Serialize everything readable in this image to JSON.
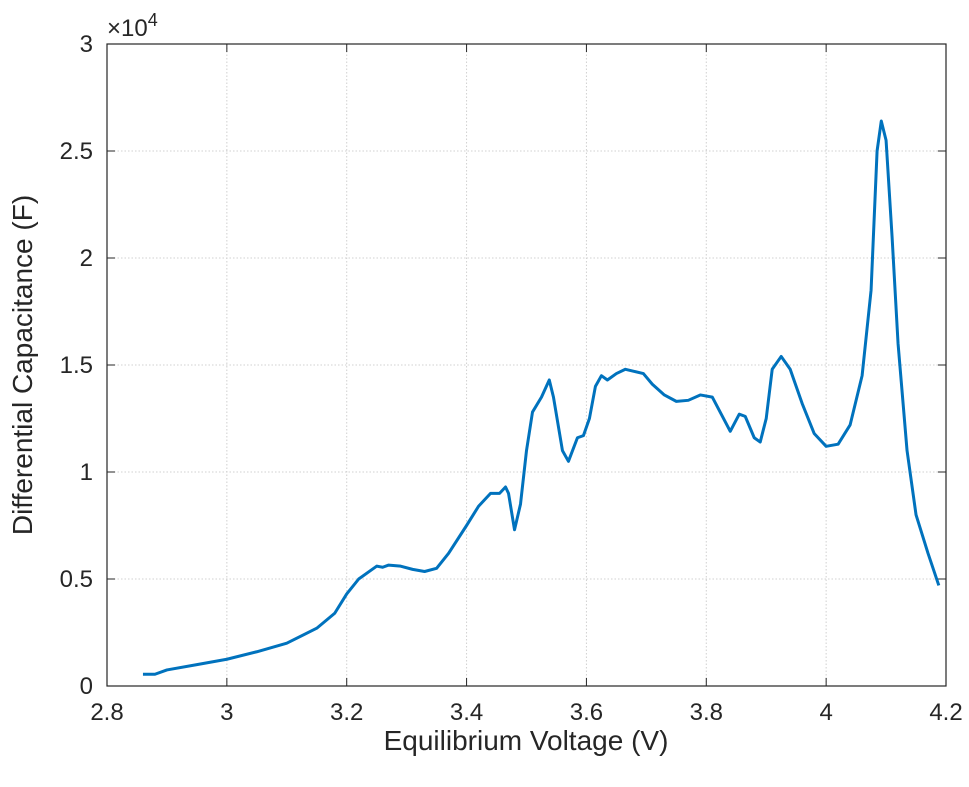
{
  "chart_data": {
    "type": "line",
    "x_label": "Equilibrium Voltage (V)",
    "y_label": "Differential Capacitance (F)",
    "y_multiplier": {
      "base": "×10",
      "exponent": "4"
    },
    "xlim": [
      2.8,
      4.2
    ],
    "ylim": [
      0,
      3
    ],
    "xticks": [
      2.8,
      3,
      3.2,
      3.4,
      3.6,
      3.8,
      4,
      4.2
    ],
    "yticks": [
      0,
      0.5,
      1,
      1.5,
      2,
      2.5,
      3
    ],
    "grid": true,
    "series": [
      {
        "name": "Differential Capacitance",
        "color": "#0072bd",
        "x": [
          2.86,
          2.88,
          2.9,
          2.95,
          3.0,
          3.05,
          3.1,
          3.15,
          3.18,
          3.2,
          3.22,
          3.24,
          3.25,
          3.26,
          3.27,
          3.29,
          3.31,
          3.33,
          3.35,
          3.37,
          3.4,
          3.42,
          3.44,
          3.455,
          3.465,
          3.47,
          3.48,
          3.49,
          3.5,
          3.51,
          3.525,
          3.538,
          3.545,
          3.56,
          3.57,
          3.585,
          3.595,
          3.605,
          3.615,
          3.625,
          3.635,
          3.65,
          3.665,
          3.68,
          3.695,
          3.71,
          3.73,
          3.75,
          3.77,
          3.79,
          3.81,
          3.825,
          3.84,
          3.855,
          3.865,
          3.88,
          3.89,
          3.9,
          3.91,
          3.925,
          3.94,
          3.96,
          3.98,
          4.0,
          4.02,
          4.04,
          4.06,
          4.075,
          4.085,
          4.092,
          4.1,
          4.11,
          4.12,
          4.135,
          4.15,
          4.17,
          4.188
        ],
        "values": [
          0.055,
          0.055,
          0.075,
          0.1,
          0.125,
          0.16,
          0.2,
          0.27,
          0.34,
          0.43,
          0.5,
          0.54,
          0.56,
          0.555,
          0.565,
          0.56,
          0.545,
          0.535,
          0.55,
          0.62,
          0.75,
          0.84,
          0.9,
          0.9,
          0.93,
          0.9,
          0.73,
          0.85,
          1.1,
          1.28,
          1.35,
          1.43,
          1.35,
          1.1,
          1.05,
          1.16,
          1.17,
          1.25,
          1.4,
          1.45,
          1.43,
          1.46,
          1.48,
          1.47,
          1.46,
          1.41,
          1.36,
          1.33,
          1.335,
          1.36,
          1.35,
          1.27,
          1.19,
          1.27,
          1.26,
          1.16,
          1.14,
          1.25,
          1.48,
          1.54,
          1.48,
          1.32,
          1.18,
          1.12,
          1.13,
          1.22,
          1.45,
          1.85,
          2.5,
          2.64,
          2.55,
          2.1,
          1.6,
          1.1,
          0.8,
          0.62,
          0.47
        ]
      }
    ]
  }
}
